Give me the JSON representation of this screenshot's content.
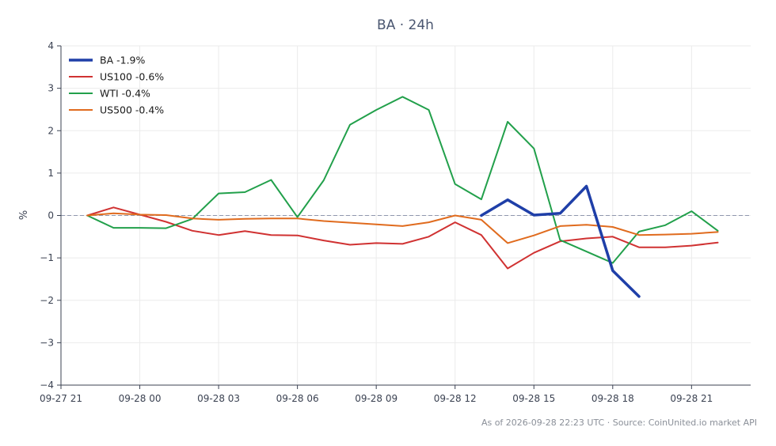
{
  "chart_data": {
    "type": "line",
    "title": "BA · 24h",
    "ylabel": "%",
    "xlabel": "",
    "xlim": [
      "2026-09-27T21:00",
      "2026-09-28T23:15"
    ],
    "ylim": [
      -4,
      4
    ],
    "y_ticks": [
      -4,
      -3,
      -2,
      -1,
      0,
      1,
      2,
      3,
      4
    ],
    "y_tick_labels": [
      "−4",
      "−3",
      "−2",
      "−1",
      "0",
      "1",
      "2",
      "3",
      "4"
    ],
    "x_ticks": [
      "2026-09-27T21:00",
      "2026-09-28T00:00",
      "2026-09-28T03:00",
      "2026-09-28T06:00",
      "2026-09-28T09:00",
      "2026-09-28T12:00",
      "2026-09-28T15:00",
      "2026-09-28T18:00",
      "2026-09-28T21:00"
    ],
    "x_tick_labels": [
      "09-27 21",
      "09-28 00",
      "09-28 03",
      "09-28 06",
      "09-28 09",
      "09-28 12",
      "09-28 15",
      "09-28 18",
      "09-28 21"
    ],
    "grid": true,
    "zero_line": true,
    "legend_position": "top-left",
    "series": [
      {
        "name": "BA -1.9%",
        "color": "#1f3fa8",
        "x": [
          "2026-09-28T13:00",
          "2026-09-28T14:00",
          "2026-09-28T15:00",
          "2026-09-28T16:00",
          "2026-09-28T17:00",
          "2026-09-28T18:00",
          "2026-09-28T19:00"
        ],
        "values": [
          0.0,
          0.37,
          0.01,
          0.05,
          0.69,
          -1.3,
          -1.91
        ]
      },
      {
        "name": "US100 -0.6%",
        "color": "#d03232",
        "x": [
          "2026-09-27T22:00",
          "2026-09-27T23:00",
          "2026-09-28T00:00",
          "2026-09-28T01:00",
          "2026-09-28T02:00",
          "2026-09-28T03:00",
          "2026-09-28T04:00",
          "2026-09-28T05:00",
          "2026-09-28T06:00",
          "2026-09-28T07:00",
          "2026-09-28T08:00",
          "2026-09-28T09:00",
          "2026-09-28T10:00",
          "2026-09-28T11:00",
          "2026-09-28T12:00",
          "2026-09-28T13:00",
          "2026-09-28T14:00",
          "2026-09-28T15:00",
          "2026-09-28T16:00",
          "2026-09-28T17:00",
          "2026-09-28T18:00",
          "2026-09-28T19:00",
          "2026-09-28T20:00",
          "2026-09-28T21:00",
          "2026-09-28T22:00"
        ],
        "values": [
          0.0,
          0.19,
          0.02,
          -0.15,
          -0.36,
          -0.46,
          -0.37,
          -0.46,
          -0.47,
          -0.59,
          -0.69,
          -0.65,
          -0.67,
          -0.5,
          -0.16,
          -0.46,
          -1.25,
          -0.88,
          -0.61,
          -0.54,
          -0.5,
          -0.75,
          -0.75,
          -0.71,
          -0.64
        ]
      },
      {
        "name": "WTI -0.4%",
        "color": "#22a04b",
        "x": [
          "2026-09-27T22:00",
          "2026-09-27T23:00",
          "2026-09-28T00:00",
          "2026-09-28T01:00",
          "2026-09-28T02:00",
          "2026-09-28T03:00",
          "2026-09-28T04:00",
          "2026-09-28T05:00",
          "2026-09-28T06:00",
          "2026-09-28T07:00",
          "2026-09-28T08:00",
          "2026-09-28T09:00",
          "2026-09-28T10:00",
          "2026-09-28T11:00",
          "2026-09-28T12:00",
          "2026-09-28T13:00",
          "2026-09-28T14:00",
          "2026-09-28T15:00",
          "2026-09-28T16:00",
          "2026-09-28T17:00",
          "2026-09-28T18:00",
          "2026-09-28T19:00",
          "2026-09-28T20:00",
          "2026-09-28T21:00",
          "2026-09-28T22:00"
        ],
        "values": [
          0.0,
          -0.29,
          -0.29,
          -0.3,
          -0.08,
          0.52,
          0.55,
          0.84,
          -0.04,
          0.83,
          2.14,
          2.49,
          2.8,
          2.49,
          0.74,
          0.38,
          2.21,
          1.58,
          -0.58,
          -0.85,
          -1.12,
          -0.38,
          -0.23,
          0.1,
          -0.36
        ]
      },
      {
        "name": "US500 -0.4%",
        "color": "#e06b1e",
        "x": [
          "2026-09-27T22:00",
          "2026-09-27T23:00",
          "2026-09-28T00:00",
          "2026-09-28T01:00",
          "2026-09-28T02:00",
          "2026-09-28T03:00",
          "2026-09-28T04:00",
          "2026-09-28T05:00",
          "2026-09-28T06:00",
          "2026-09-28T07:00",
          "2026-09-28T08:00",
          "2026-09-28T09:00",
          "2026-09-28T10:00",
          "2026-09-28T11:00",
          "2026-09-28T12:00",
          "2026-09-28T13:00",
          "2026-09-28T14:00",
          "2026-09-28T15:00",
          "2026-09-28T16:00",
          "2026-09-28T17:00",
          "2026-09-28T18:00",
          "2026-09-28T19:00",
          "2026-09-28T20:00",
          "2026-09-28T21:00",
          "2026-09-28T22:00"
        ],
        "values": [
          0.0,
          0.05,
          0.02,
          0.01,
          -0.07,
          -0.1,
          -0.08,
          -0.07,
          -0.07,
          -0.13,
          -0.17,
          -0.21,
          -0.25,
          -0.16,
          0.0,
          -0.1,
          -0.65,
          -0.47,
          -0.25,
          -0.22,
          -0.27,
          -0.46,
          -0.45,
          -0.43,
          -0.39
        ]
      }
    ]
  },
  "footer_text": "As of 2026-09-28 22:23 UTC · Source: CoinUnited.io market API"
}
